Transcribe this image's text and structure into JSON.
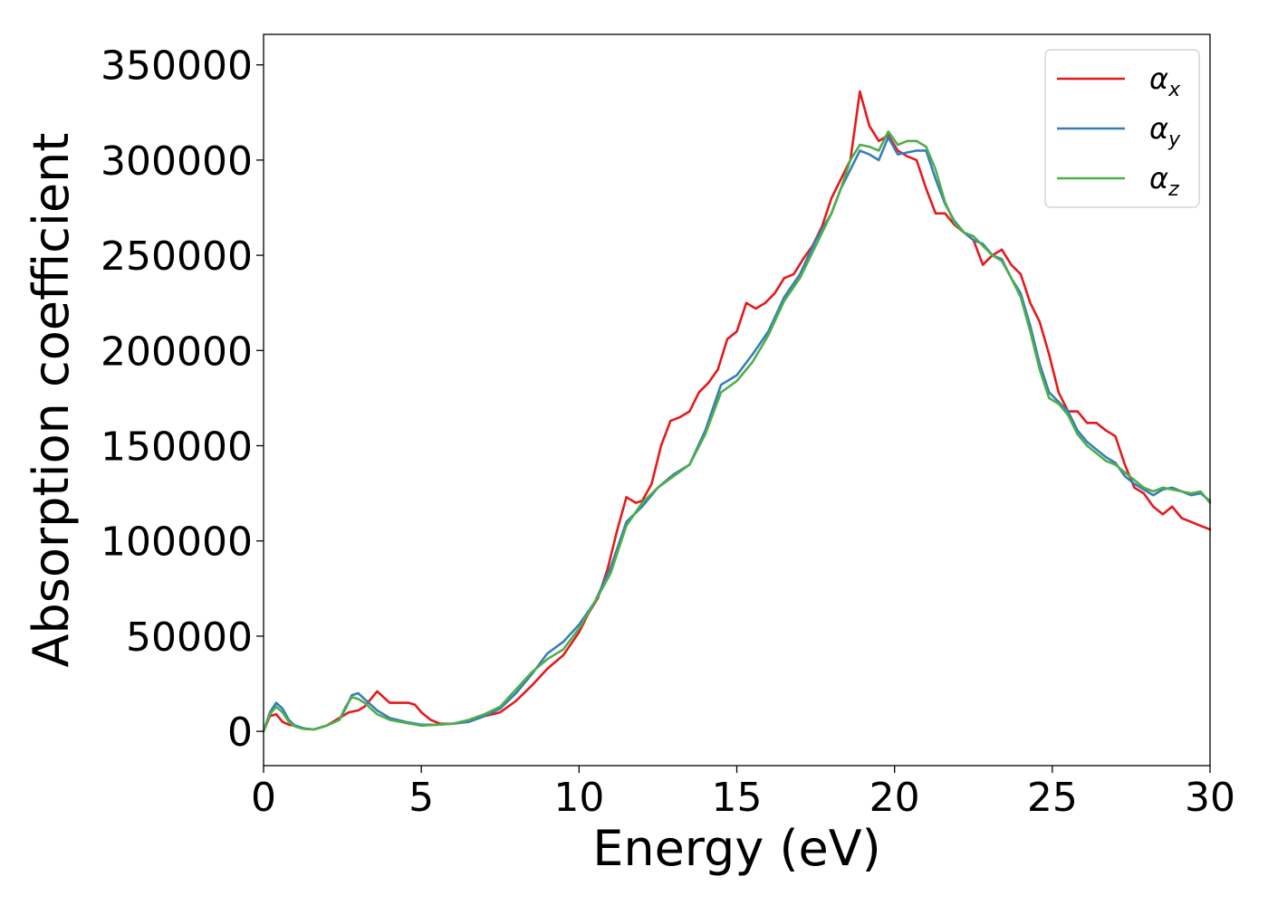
{
  "chart_data": {
    "type": "line",
    "title": "",
    "xlabel": "Energy (eV)",
    "ylabel": "Absorption coefficient",
    "xlim": [
      0,
      30
    ],
    "ylim": [
      -18000,
      366000
    ],
    "xticks": [
      0,
      5,
      10,
      15,
      20,
      25,
      30
    ],
    "yticks": [
      0,
      50000,
      100000,
      150000,
      200000,
      250000,
      300000,
      350000
    ],
    "grid": false,
    "legend_position": "top-right",
    "series": [
      {
        "name": "αx",
        "label_main": "α",
        "label_sub": "x",
        "color": "#e41a1c",
        "x": [
          0,
          0.2,
          0.4,
          0.6,
          0.8,
          1.0,
          1.3,
          1.6,
          2.0,
          2.4,
          2.7,
          3.0,
          3.2,
          3.4,
          3.6,
          3.8,
          4.0,
          4.3,
          4.6,
          4.8,
          5.0,
          5.3,
          5.6,
          6.0,
          6.5,
          7.0,
          7.5,
          8.0,
          8.5,
          9.0,
          9.5,
          10.0,
          10.3,
          10.6,
          10.9,
          11.2,
          11.5,
          11.8,
          12.0,
          12.3,
          12.6,
          12.9,
          13.2,
          13.5,
          13.8,
          14.1,
          14.4,
          14.7,
          15.0,
          15.3,
          15.6,
          15.9,
          16.2,
          16.5,
          16.8,
          17.1,
          17.4,
          17.7,
          18.0,
          18.3,
          18.6,
          18.9,
          19.2,
          19.5,
          19.8,
          20.1,
          20.4,
          20.7,
          21.0,
          21.3,
          21.6,
          21.9,
          22.2,
          22.5,
          22.8,
          23.1,
          23.4,
          23.7,
          24.0,
          24.3,
          24.6,
          24.9,
          25.2,
          25.5,
          25.8,
          26.1,
          26.4,
          26.7,
          27.0,
          27.3,
          27.6,
          27.9,
          28.2,
          28.5,
          28.8,
          29.1,
          29.4,
          29.7,
          30.0
        ],
        "y": [
          0,
          8000,
          9000,
          5000,
          3500,
          3000,
          1500,
          1000,
          3000,
          7000,
          10000,
          11000,
          13000,
          17000,
          21000,
          18000,
          15000,
          15000,
          15000,
          14000,
          10000,
          6000,
          4000,
          4000,
          5000,
          8000,
          10000,
          16000,
          24000,
          33000,
          40000,
          52000,
          62000,
          70000,
          85000,
          105000,
          123000,
          120000,
          121000,
          130000,
          150000,
          163000,
          165000,
          168000,
          178000,
          183000,
          190000,
          206000,
          210000,
          225000,
          222000,
          225000,
          230000,
          238000,
          240000,
          248000,
          255000,
          265000,
          280000,
          290000,
          300000,
          336000,
          318000,
          310000,
          313000,
          305000,
          302000,
          300000,
          285000,
          272000,
          272000,
          266000,
          262000,
          258000,
          245000,
          250000,
          253000,
          245000,
          240000,
          225000,
          215000,
          198000,
          178000,
          168000,
          168000,
          162000,
          162000,
          158000,
          155000,
          140000,
          128000,
          125000,
          118000,
          114000,
          118000,
          112000,
          110000,
          108000,
          106000
        ]
      },
      {
        "name": "αy",
        "label_main": "α",
        "label_sub": "y",
        "color": "#377eb8",
        "x": [
          0,
          0.2,
          0.4,
          0.6,
          0.8,
          1.0,
          1.3,
          1.6,
          2.0,
          2.4,
          2.6,
          2.8,
          3.0,
          3.2,
          3.4,
          3.6,
          4.0,
          4.5,
          5.0,
          5.5,
          6.0,
          6.5,
          7.0,
          7.5,
          8.0,
          8.5,
          9.0,
          9.5,
          10.0,
          10.5,
          11.0,
          11.5,
          12.0,
          12.5,
          13.0,
          13.5,
          14.0,
          14.5,
          15.0,
          15.5,
          16.0,
          16.5,
          17.0,
          17.5,
          18.0,
          18.3,
          18.6,
          18.9,
          19.2,
          19.5,
          19.8,
          20.1,
          20.4,
          20.7,
          21.0,
          21.3,
          21.6,
          21.9,
          22.2,
          22.5,
          22.8,
          23.1,
          23.4,
          23.7,
          24.0,
          24.3,
          24.6,
          24.9,
          25.2,
          25.5,
          25.8,
          26.1,
          26.4,
          26.7,
          27.0,
          27.3,
          27.6,
          27.9,
          28.2,
          28.5,
          28.8,
          29.1,
          29.4,
          29.7,
          30.0
        ],
        "y": [
          0,
          10000,
          15000,
          12000,
          6000,
          3000,
          1500,
          1000,
          3000,
          6000,
          12000,
          19000,
          20000,
          17000,
          14000,
          11000,
          7000,
          5000,
          3500,
          3500,
          4000,
          5000,
          8000,
          12000,
          20000,
          30000,
          41000,
          47000,
          56000,
          68000,
          86000,
          110000,
          118000,
          128000,
          135000,
          140000,
          158000,
          182000,
          187000,
          198000,
          210000,
          228000,
          240000,
          258000,
          272000,
          285000,
          295000,
          305000,
          303000,
          300000,
          312000,
          303000,
          304000,
          305000,
          305000,
          290000,
          277000,
          268000,
          262000,
          258000,
          256000,
          250000,
          248000,
          238000,
          230000,
          213000,
          193000,
          178000,
          173000,
          168000,
          158000,
          152000,
          148000,
          144000,
          141000,
          134000,
          130000,
          127000,
          124000,
          127000,
          128000,
          126000,
          124000,
          125000,
          121000
        ]
      },
      {
        "name": "αz",
        "label_main": "α",
        "label_sub": "z",
        "color": "#4daf4a",
        "x": [
          0,
          0.2,
          0.4,
          0.6,
          0.8,
          1.0,
          1.3,
          1.6,
          2.0,
          2.4,
          2.6,
          2.8,
          3.0,
          3.2,
          3.4,
          3.6,
          4.0,
          4.5,
          5.0,
          5.5,
          6.0,
          6.5,
          7.0,
          7.5,
          8.0,
          8.5,
          9.0,
          9.5,
          10.0,
          10.5,
          11.0,
          11.5,
          12.0,
          12.5,
          13.0,
          13.5,
          14.0,
          14.5,
          15.0,
          15.5,
          16.0,
          16.5,
          17.0,
          17.5,
          18.0,
          18.3,
          18.6,
          18.9,
          19.2,
          19.5,
          19.8,
          20.1,
          20.4,
          20.7,
          21.0,
          21.3,
          21.6,
          21.9,
          22.2,
          22.5,
          22.8,
          23.1,
          23.4,
          23.7,
          24.0,
          24.3,
          24.6,
          24.9,
          25.2,
          25.5,
          25.8,
          26.1,
          26.4,
          26.7,
          27.0,
          27.3,
          27.6,
          27.9,
          28.2,
          28.5,
          28.8,
          29.1,
          29.4,
          29.7,
          30.0
        ],
        "y": [
          0,
          9000,
          13000,
          10000,
          5000,
          2500,
          1200,
          1000,
          3000,
          6000,
          13000,
          18000,
          17000,
          15000,
          12000,
          9000,
          6000,
          4500,
          3000,
          3500,
          4000,
          6000,
          9000,
          13000,
          22000,
          31000,
          38000,
          43000,
          54000,
          68000,
          83000,
          108000,
          120000,
          128000,
          134000,
          140000,
          156000,
          178000,
          184000,
          194000,
          208000,
          226000,
          238000,
          255000,
          272000,
          285000,
          300000,
          308000,
          307000,
          305000,
          315000,
          308000,
          310000,
          310000,
          307000,
          295000,
          278000,
          267000,
          262000,
          260000,
          255000,
          250000,
          247000,
          238000,
          228000,
          210000,
          190000,
          175000,
          172000,
          166000,
          156000,
          150000,
          146000,
          142000,
          140000,
          136000,
          132000,
          128000,
          126000,
          128000,
          127000,
          126000,
          125000,
          126000,
          120000
        ]
      }
    ]
  }
}
